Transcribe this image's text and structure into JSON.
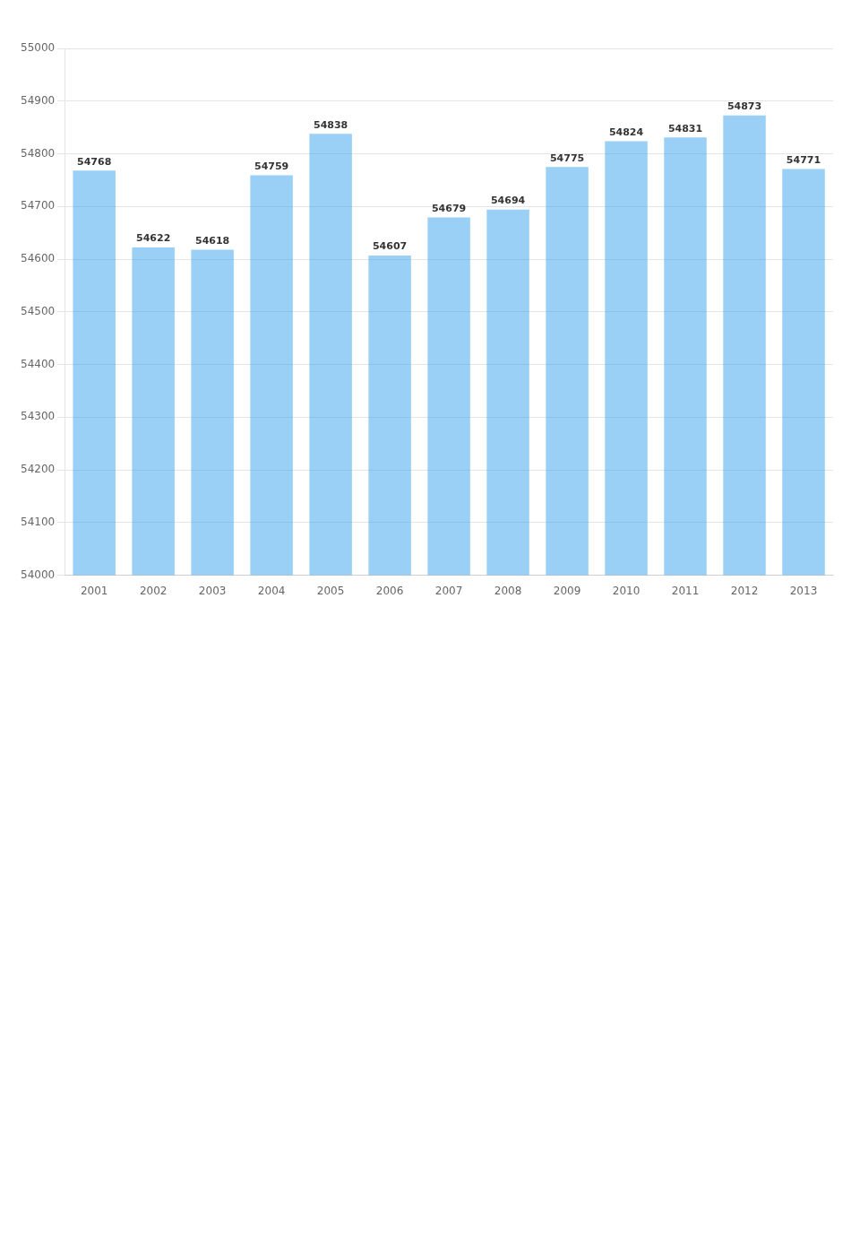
{
  "chart_data": {
    "type": "bar",
    "categories": [
      2001,
      2002,
      2003,
      2004,
      2005,
      2006,
      2007,
      2008,
      2009,
      2010,
      2011,
      2012,
      2013
    ],
    "values": [
      54768,
      54622,
      54618,
      54759,
      54838,
      54607,
      54679,
      54694,
      54775,
      54824,
      54831,
      54873,
      54771
    ],
    "ylim": [
      54000,
      55000
    ],
    "yticks": [
      54000,
      54100,
      54200,
      54300,
      54400,
      54500,
      54600,
      54700,
      54800,
      54900,
      55000
    ],
    "grid": true,
    "data_labels": true
  }
}
